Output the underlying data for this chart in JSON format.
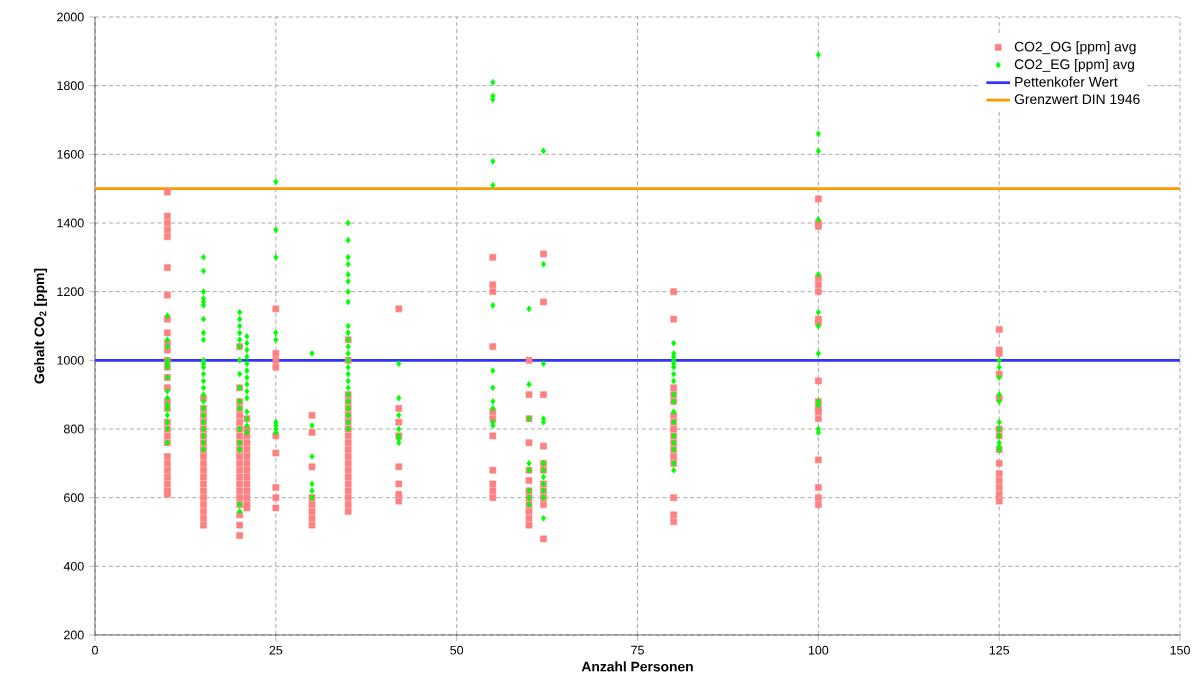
{
  "chart_data": {
    "type": "scatter",
    "xlabel": "Anzahl Personen",
    "ylabel": "Gehalt CO$_{2}$ [ppm]",
    "xlim": [
      0,
      150
    ],
    "ylim": [
      200,
      2000
    ],
    "xticks": [
      0,
      25,
      50,
      75,
      100,
      125,
      150
    ],
    "yticks": [
      200,
      400,
      600,
      800,
      1000,
      1200,
      1400,
      1600,
      1800,
      2000
    ],
    "grid": true,
    "legend": "top right",
    "series": [
      {
        "name": "CO2_OG [ppm] avg",
        "marker": "square",
        "color": "#ff8080",
        "x": [
          10,
          10,
          10,
          10,
          10,
          10,
          10,
          10,
          10,
          10,
          10,
          10,
          10,
          10,
          10,
          10,
          10,
          10,
          10,
          10,
          10,
          10,
          10,
          10,
          10,
          10,
          10,
          10,
          15,
          15,
          15,
          15,
          15,
          15,
          15,
          15,
          15,
          15,
          15,
          15,
          15,
          15,
          15,
          15,
          15,
          15,
          15,
          20,
          20,
          20,
          20,
          20,
          20,
          20,
          20,
          20,
          20,
          20,
          20,
          20,
          20,
          20,
          20,
          20,
          20,
          20,
          20,
          20,
          21,
          21,
          21,
          21,
          21,
          21,
          21,
          21,
          21,
          21,
          21,
          21,
          21,
          21,
          25,
          25,
          25,
          25,
          25,
          25,
          25,
          25,
          25,
          30,
          30,
          30,
          30,
          30,
          30,
          30,
          30,
          35,
          35,
          35,
          35,
          35,
          35,
          35,
          35,
          35,
          35,
          35,
          35,
          35,
          35,
          35,
          35,
          35,
          35,
          35,
          35,
          42,
          42,
          42,
          42,
          42,
          42,
          42,
          42,
          55,
          55,
          55,
          55,
          55,
          55,
          55,
          55,
          55,
          55,
          55,
          60,
          60,
          60,
          60,
          60,
          60,
          60,
          60,
          60,
          60,
          60,
          60,
          62,
          62,
          62,
          62,
          62,
          62,
          62,
          62,
          62,
          62,
          62,
          80,
          80,
          80,
          80,
          80,
          80,
          80,
          80,
          80,
          80,
          80,
          80,
          80,
          80,
          80,
          80,
          100,
          100,
          100,
          100,
          100,
          100,
          100,
          100,
          100,
          100,
          100,
          100,
          100,
          100,
          100,
          100,
          100,
          125,
          125,
          125,
          125,
          125,
          125,
          125,
          125,
          125,
          125,
          125,
          125,
          125,
          125
        ],
        "values": [
          1490,
          1420,
          1400,
          1380,
          1360,
          1270,
          1190,
          1120,
          1080,
          1050,
          1030,
          1000,
          980,
          950,
          920,
          880,
          860,
          820,
          800,
          780,
          760,
          720,
          700,
          680,
          660,
          640,
          620,
          610,
          890,
          860,
          840,
          820,
          800,
          780,
          760,
          740,
          720,
          700,
          680,
          660,
          640,
          620,
          600,
          580,
          560,
          540,
          520,
          1040,
          920,
          880,
          860,
          840,
          820,
          800,
          780,
          760,
          740,
          720,
          700,
          680,
          660,
          640,
          620,
          600,
          580,
          550,
          520,
          490,
          830,
          800,
          780,
          760,
          740,
          720,
          700,
          680,
          660,
          640,
          620,
          600,
          580,
          570,
          1150,
          1020,
          1000,
          980,
          780,
          730,
          630,
          600,
          570,
          840,
          790,
          690,
          600,
          580,
          560,
          540,
          520,
          1060,
          1000,
          900,
          880,
          860,
          840,
          820,
          800,
          780,
          760,
          740,
          720,
          700,
          680,
          660,
          640,
          620,
          600,
          580,
          560,
          1150,
          860,
          820,
          780,
          690,
          640,
          610,
          590,
          1300,
          1220,
          1200,
          1040,
          850,
          830,
          780,
          680,
          640,
          620,
          600,
          1000,
          900,
          830,
          760,
          680,
          650,
          620,
          600,
          580,
          560,
          540,
          520,
          1310,
          1170,
          900,
          750,
          700,
          680,
          640,
          620,
          600,
          580,
          480,
          1200,
          1120,
          920,
          900,
          880,
          840,
          820,
          800,
          780,
          760,
          740,
          720,
          700,
          600,
          550,
          530,
          1470,
          1400,
          1390,
          1240,
          1220,
          1200,
          1120,
          1110,
          940,
          880,
          860,
          850,
          830,
          710,
          630,
          600,
          580,
          1090,
          1030,
          1020,
          960,
          890,
          800,
          780,
          740,
          700,
          670,
          650,
          630,
          610,
          590
        ]
      },
      {
        "name": "CO2_EG [ppm] avg",
        "marker": "diamond",
        "color": "#00ff00",
        "x": [
          10,
          10,
          10,
          10,
          10,
          10,
          10,
          10,
          10,
          10,
          10,
          10,
          10,
          10,
          10,
          15,
          15,
          15,
          15,
          15,
          15,
          15,
          15,
          15,
          15,
          15,
          15,
          15,
          15,
          15,
          15,
          15,
          15,
          15,
          15,
          15,
          15,
          15,
          15,
          20,
          20,
          20,
          20,
          20,
          20,
          20,
          20,
          20,
          20,
          20,
          20,
          20,
          20,
          20,
          20,
          21,
          21,
          21,
          21,
          21,
          21,
          21,
          21,
          21,
          21,
          21,
          21,
          21,
          21,
          25,
          25,
          25,
          25,
          25,
          25,
          25,
          25,
          25,
          30,
          30,
          30,
          30,
          30,
          30,
          35,
          35,
          35,
          35,
          35,
          35,
          35,
          35,
          35,
          35,
          35,
          35,
          35,
          35,
          35,
          35,
          35,
          35,
          35,
          35,
          35,
          35,
          35,
          35,
          42,
          42,
          42,
          42,
          42,
          42,
          42,
          55,
          55,
          55,
          55,
          55,
          55,
          55,
          55,
          55,
          55,
          55,
          55,
          60,
          60,
          60,
          60,
          60,
          60,
          60,
          60,
          62,
          62,
          62,
          62,
          62,
          62,
          62,
          62,
          62,
          62,
          62,
          62,
          80,
          80,
          80,
          80,
          80,
          80,
          80,
          80,
          80,
          80,
          80,
          80,
          80,
          80,
          80,
          80,
          80,
          100,
          100,
          100,
          100,
          100,
          100,
          100,
          100,
          100,
          100,
          100,
          100,
          125,
          125,
          125,
          125,
          125,
          125,
          125,
          125,
          125,
          125,
          125
        ],
        "values": [
          1130,
          1060,
          1040,
          1000,
          990,
          980,
          950,
          910,
          890,
          870,
          860,
          840,
          820,
          800,
          760,
          1300,
          1260,
          1200,
          1180,
          1170,
          1160,
          1120,
          1080,
          1060,
          1000,
          990,
          980,
          960,
          940,
          920,
          900,
          880,
          860,
          840,
          820,
          800,
          780,
          760,
          740,
          1140,
          1120,
          1100,
          1080,
          1060,
          1040,
          1000,
          960,
          920,
          880,
          860,
          800,
          760,
          740,
          580,
          560,
          1070,
          1050,
          1030,
          1010,
          990,
          970,
          950,
          930,
          910,
          890,
          850,
          830,
          810,
          790,
          1520,
          1380,
          1300,
          1080,
          1060,
          820,
          810,
          800,
          790,
          1020,
          810,
          720,
          640,
          620,
          600,
          1400,
          1350,
          1300,
          1280,
          1250,
          1230,
          1200,
          1170,
          1100,
          1080,
          1060,
          1040,
          1020,
          1000,
          980,
          960,
          940,
          920,
          900,
          880,
          860,
          840,
          820,
          800,
          990,
          890,
          840,
          800,
          780,
          770,
          760,
          1810,
          1770,
          1760,
          1580,
          1510,
          1160,
          970,
          920,
          880,
          860,
          820,
          810,
          1150,
          930,
          830,
          700,
          680,
          620,
          600,
          580,
          1610,
          1280,
          990,
          830,
          820,
          700,
          680,
          660,
          640,
          620,
          600,
          540,
          1050,
          1020,
          1010,
          1000,
          990,
          980,
          960,
          940,
          900,
          880,
          850,
          820,
          780,
          760,
          740,
          700,
          680,
          1890,
          1660,
          1610,
          1410,
          1250,
          1140,
          1100,
          1020,
          880,
          870,
          800,
          790,
          1000,
          980,
          950,
          900,
          880,
          820,
          800,
          780,
          760,
          750,
          740
        ]
      },
      {
        "name": "Pettenkofer Wert",
        "type": "line",
        "marker": "none",
        "color": "#3333ff",
        "x": [
          0,
          150
        ],
        "values": [
          1000,
          1000
        ]
      },
      {
        "name": "Grenzwert DIN 1946",
        "type": "line",
        "marker": "none",
        "color": "#ff9900",
        "x": [
          0,
          150
        ],
        "values": [
          1500,
          1500
        ]
      }
    ]
  }
}
